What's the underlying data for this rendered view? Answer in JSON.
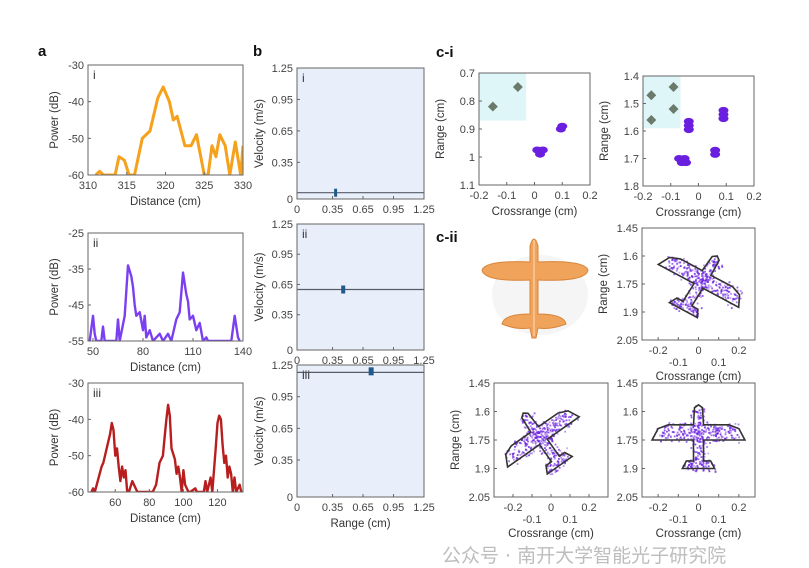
{
  "panel_labels": {
    "a": "a",
    "b": "b",
    "ci": "c-i",
    "cii": "c-ii"
  },
  "watermark": "公众号 · 南开大学智能光子研究院",
  "colors": {
    "orange": "#f5a11c",
    "purple": "#7b3ff2",
    "red": "#b81e1e",
    "velocity_bg": "#e9eefb",
    "scatter": "#6a1fe0",
    "marker_gray": "#6b7a6b",
    "highlight": "#dff6f8",
    "plane_photo": "#f0a35a"
  },
  "chart_data": [
    {
      "id": "a1",
      "type": "line",
      "tag": "i",
      "xlabel": "Distance (cm)",
      "ylabel": "Power (dB)",
      "xlim": [
        310,
        330
      ],
      "ylim": [
        -60,
        -30
      ],
      "xticks": [
        310,
        315,
        320,
        325,
        330
      ],
      "xtick_labels": [
        "310",
        "315",
        "320",
        "325",
        "330"
      ],
      "yticks": [
        -30,
        -40,
        -50,
        -60
      ],
      "ytick_labels": [
        "-30",
        "-40",
        "-50",
        "-60"
      ],
      "color": "#f5a11c",
      "x": [
        311,
        311.5,
        312,
        313.5,
        314,
        314.7,
        315.3,
        316,
        317,
        318,
        319,
        319.7,
        320.5,
        321,
        321.5,
        322.5,
        323.3,
        324,
        325,
        325.5,
        326,
        326.5,
        327,
        327.7,
        328.3,
        329,
        329.7,
        330
      ],
      "y": [
        -60,
        -59,
        -60,
        -60,
        -55,
        -56,
        -60,
        -60,
        -50,
        -48,
        -39,
        -36,
        -40,
        -45,
        -44,
        -52,
        -52,
        -49,
        -60,
        -60,
        -52,
        -55,
        -49,
        -52,
        -60,
        -51,
        -60,
        -52
      ]
    },
    {
      "id": "a2",
      "type": "line",
      "tag": "ii",
      "xlabel": "Distance (cm)",
      "ylabel": "Power (dB)",
      "xlim": [
        47,
        140
      ],
      "ylim": [
        -55,
        -25
      ],
      "xticks": [
        50,
        80,
        110,
        140
      ],
      "xtick_labels": [
        "50",
        "80",
        "110",
        "140"
      ],
      "yticks": [
        -25,
        -35,
        -45,
        -55
      ],
      "ytick_labels": [
        "-25",
        "-35",
        "-45",
        "-55"
      ],
      "color": "#7b3ff2",
      "x": [
        48,
        50,
        51,
        52,
        55,
        56,
        57,
        64,
        65,
        66,
        69,
        71,
        73,
        74,
        75,
        76,
        78,
        80,
        81,
        82,
        84,
        86,
        90,
        92,
        95,
        97,
        100,
        102,
        104,
        106,
        107,
        108,
        110,
        112,
        114,
        116,
        118,
        119,
        133,
        135,
        137,
        138
      ],
      "y": [
        -55,
        -48,
        -53,
        -55,
        -55,
        -51,
        -55,
        -55,
        -49,
        -55,
        -48,
        -34,
        -37,
        -40,
        -45,
        -48,
        -47,
        -52,
        -48,
        -54,
        -52,
        -55,
        -53,
        -55,
        -53,
        -55,
        -49,
        -47,
        -36,
        -42,
        -44,
        -49,
        -48,
        -52,
        -50,
        -55,
        -54,
        -55,
        -55,
        -48,
        -54,
        -55
      ]
    },
    {
      "id": "a3",
      "type": "line",
      "tag": "iii",
      "xlabel": "Distance (cm)",
      "ylabel": "Power (dB)",
      "xlim": [
        44,
        135
      ],
      "ylim": [
        -60,
        -30
      ],
      "xticks": [
        60,
        80,
        100,
        120
      ],
      "xtick_labels": [
        "60",
        "80",
        "100",
        "120"
      ],
      "yticks": [
        -30,
        -40,
        -50,
        -60
      ],
      "ytick_labels": [
        "-30",
        "-40",
        "-50",
        "-60"
      ],
      "color": "#b81e1e",
      "x": [
        46,
        47,
        48,
        52,
        53,
        55,
        57,
        58,
        59,
        60,
        61,
        62,
        63,
        64,
        65,
        66,
        67,
        68,
        70,
        71,
        72,
        73,
        74,
        82,
        84,
        86,
        88,
        89,
        90,
        91,
        92,
        93,
        95,
        96,
        97,
        98,
        99,
        100,
        101,
        103,
        104,
        107,
        108,
        112,
        113,
        114,
        116,
        117,
        119,
        120,
        121,
        122,
        123,
        124,
        125,
        126,
        127,
        128,
        129,
        130,
        131,
        133,
        134
      ],
      "y": [
        -60,
        -59,
        -60,
        -53,
        -52,
        -48,
        -44,
        -41,
        -43,
        -50,
        -48,
        -53,
        -57,
        -53,
        -56,
        -54,
        -60,
        -60,
        -57,
        -58,
        -59,
        -60,
        -60,
        -60,
        -58,
        -52,
        -50,
        -45,
        -40,
        -36,
        -39,
        -48,
        -51,
        -55,
        -53,
        -56,
        -60,
        -54,
        -58,
        -60,
        -60,
        -59,
        -60,
        -60,
        -57,
        -60,
        -56,
        -60,
        -48,
        -41,
        -39,
        -40,
        -47,
        -52,
        -50,
        -56,
        -53,
        -55,
        -60,
        -56,
        -60,
        -58,
        -60
      ]
    },
    {
      "id": "b1",
      "type": "line",
      "tag": "i",
      "xlabel": "",
      "ylabel": "Velocity (m/s)",
      "xlim": [
        0,
        1.25
      ],
      "ylim": [
        0,
        1.25
      ],
      "xticks": [
        0,
        0.35,
        0.65,
        0.95,
        1.25
      ],
      "xtick_labels": [
        "0",
        "0.35",
        "0.65",
        "0.95",
        "1.25"
      ],
      "yticks": [
        0,
        0.35,
        0.65,
        0.95,
        1.25
      ],
      "ytick_labels": [
        "0",
        "0.35",
        "0.65",
        "0.95",
        "1.25"
      ],
      "reference_velocity": 0.06,
      "target": {
        "range": 0.38,
        "velocity": 0.06
      }
    },
    {
      "id": "b2",
      "type": "line",
      "tag": "ii",
      "xlabel": "",
      "ylabel": "Velocity (m/s)",
      "xlim": [
        0,
        1.25
      ],
      "ylim": [
        0,
        1.25
      ],
      "xticks": [
        0,
        0.35,
        0.65,
        0.95,
        1.25
      ],
      "xtick_labels": [
        "0",
        "0.35",
        "0.65",
        "0.95",
        "1.25"
      ],
      "yticks": [
        0,
        0.35,
        0.65,
        0.95,
        1.25
      ],
      "ytick_labels": [
        "0",
        "0.35",
        "0.65",
        "0.95",
        "1.25"
      ],
      "reference_velocity": 0.6,
      "target": {
        "range": 0.45,
        "velocity": 0.6
      }
    },
    {
      "id": "b3",
      "type": "line",
      "tag": "iii",
      "xlabel": "Range (cm)",
      "ylabel": "Velocity (m/s)",
      "xlim": [
        0,
        1.25
      ],
      "ylim": [
        0,
        1.25
      ],
      "xticks": [
        0,
        0.35,
        0.65,
        0.95,
        1.25
      ],
      "xtick_labels": [
        "0",
        "0.35",
        "0.65",
        "0.95",
        "1.25"
      ],
      "yticks": [
        0,
        0.35,
        0.65,
        0.95,
        1.25
      ],
      "ytick_labels": [
        "0",
        "0.35",
        "0.65",
        "0.95",
        "1.25"
      ],
      "reference_velocity": 1.18,
      "target": {
        "range": 0.72,
        "velocity": 1.19
      }
    },
    {
      "id": "c1l",
      "type": "scatter",
      "xlabel": "Crossrange (cm)",
      "ylabel": "Range (cm)",
      "xlim": [
        -0.2,
        0.2
      ],
      "ylim": [
        0.7,
        1.1
      ],
      "yreversed": true,
      "xticks": [
        -0.2,
        -0.1,
        0,
        0.1,
        0.2
      ],
      "xtick_labels": [
        "-0.2",
        "-0.1",
        "0",
        "0.1",
        "0.2"
      ],
      "yticks": [
        0.7,
        0.8,
        0.9,
        1,
        1.1
      ],
      "ytick_labels": [
        "0.7",
        "0.8",
        "0.9",
        "1",
        "1.1"
      ],
      "highlight": {
        "x": [
          -0.2,
          -0.03
        ],
        "y": [
          0.7,
          0.87
        ]
      },
      "reference_markers": [
        [
          -0.15,
          0.82
        ],
        [
          -0.06,
          0.75
        ]
      ],
      "targets": [
        [
          0.01,
          0.975
        ],
        [
          0.03,
          0.975
        ],
        [
          0.02,
          0.99
        ],
        [
          0.1,
          0.89
        ],
        [
          0.095,
          0.9
        ]
      ]
    },
    {
      "id": "c1r",
      "type": "scatter",
      "xlabel": "Crossrange (cm)",
      "ylabel": "Range (cm)",
      "xlim": [
        -0.2,
        0.2
      ],
      "ylim": [
        1.4,
        1.8
      ],
      "yreversed": true,
      "xticks": [
        -0.2,
        -0.1,
        0,
        0.1,
        0.2
      ],
      "xtick_labels": [
        "-0.2",
        "-0.1",
        "0",
        "0.1",
        "0.2"
      ],
      "yticks": [
        1.4,
        1.5,
        1.6,
        1.7,
        1.8
      ],
      "ytick_labels": [
        "1.4",
        "1.5",
        "1.6",
        "1.7",
        "1.8"
      ],
      "highlight": {
        "x": [
          -0.2,
          -0.065
        ],
        "y": [
          1.4,
          1.59
        ]
      },
      "reference_markers": [
        [
          -0.17,
          1.47
        ],
        [
          -0.09,
          1.44
        ],
        [
          -0.09,
          1.52
        ],
        [
          -0.17,
          1.56
        ]
      ],
      "targets": [
        [
          -0.035,
          1.565
        ],
        [
          -0.035,
          1.58
        ],
        [
          -0.035,
          1.595
        ],
        [
          0.09,
          1.525
        ],
        [
          0.09,
          1.54
        ],
        [
          0.09,
          1.555
        ],
        [
          0.06,
          1.67
        ],
        [
          0.06,
          1.685
        ],
        [
          -0.07,
          1.7
        ],
        [
          -0.05,
          1.7
        ],
        [
          -0.06,
          1.715
        ],
        [
          -0.045,
          1.715
        ]
      ]
    },
    {
      "id": "c2tr",
      "type": "scatter",
      "xlabel": "Crossrange (cm)",
      "ylabel": "Range (cm)",
      "xlim": [
        -0.28,
        0.28
      ],
      "ylim": [
        1.45,
        2.05
      ],
      "yreversed": true,
      "xticks": [
        -0.2,
        -0.1,
        0,
        0.1,
        0.2
      ],
      "xtick_labels": [
        "-0.2",
        "-0.1",
        "0",
        "0.1",
        "0.2"
      ],
      "yticks": [
        1.45,
        1.6,
        1.75,
        1.9,
        2.05
      ],
      "ytick_labels": [
        "1.45",
        "1.6",
        "1.75",
        "1.9",
        "2.05"
      ],
      "outline": {
        "center": [
          0,
          1.76
        ],
        "rotation_deg": 30
      }
    },
    {
      "id": "c2bl",
      "type": "scatter",
      "xlabel": "Crossrange (cm)",
      "ylabel": "Range (cm)",
      "xlim": [
        -0.3,
        0.3
      ],
      "ylim": [
        1.45,
        2.05
      ],
      "yreversed": true,
      "xticks": [
        -0.2,
        -0.1,
        0,
        0.1,
        0.2
      ],
      "xtick_labels": [
        "-0.2",
        "-0.1",
        "0",
        "0.1",
        "0.2"
      ],
      "yticks": [
        1.45,
        1.6,
        1.75,
        1.9,
        2.05
      ],
      "ytick_labels": [
        "1.45",
        "1.6",
        "1.75",
        "1.9",
        "2.05"
      ],
      "outline": {
        "center": [
          -0.04,
          1.76
        ],
        "rotation_deg": -35
      }
    },
    {
      "id": "c2br",
      "type": "scatter",
      "xlabel": "Crossrange (cm)",
      "ylabel": "",
      "xlim": [
        -0.28,
        0.28
      ],
      "ylim": [
        1.45,
        2.05
      ],
      "yreversed": true,
      "xticks": [
        -0.2,
        -0.1,
        0,
        0.1,
        0.2
      ],
      "xtick_labels": [
        "-0.2",
        "-0.1",
        "0",
        "0.1",
        "0.2"
      ],
      "yticks": [
        1.45,
        1.6,
        1.75,
        1.9,
        2.05
      ],
      "ytick_labels": [
        "1.45",
        "1.6",
        "1.75",
        "1.9",
        "2.05"
      ],
      "outline": {
        "center": [
          0,
          1.75
        ],
        "rotation_deg": 0
      }
    }
  ]
}
